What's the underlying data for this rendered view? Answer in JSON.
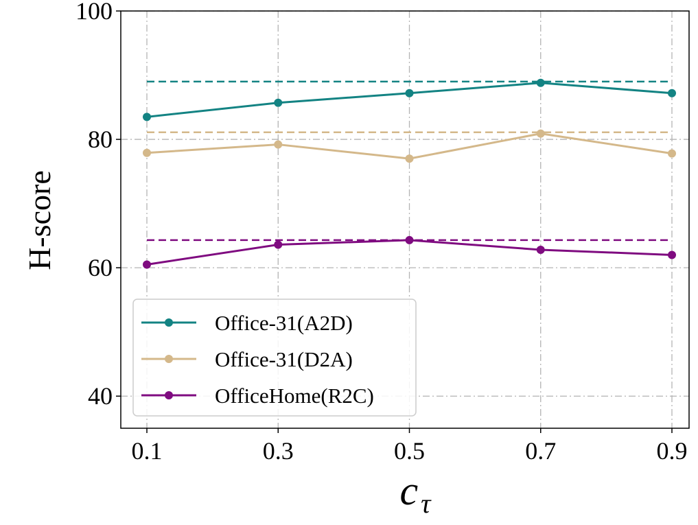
{
  "chart_data": {
    "type": "line",
    "title": "",
    "xlabel": "c_τ",
    "xlabel_base": "c",
    "xlabel_sub": "τ",
    "ylabel": "H-score",
    "x": [
      0.1,
      0.3,
      0.5,
      0.7,
      0.9
    ],
    "x_tick_labels": [
      "0.1",
      "0.3",
      "0.5",
      "0.7",
      "0.9"
    ],
    "ylim": [
      35,
      100
    ],
    "y_ticks": [
      40,
      60,
      80,
      100
    ],
    "y_tick_labels": [
      "40",
      "60",
      "80",
      "100"
    ],
    "grid": true,
    "legend_position": "lower-left",
    "series": [
      {
        "name": "Office-31(A2D)",
        "color": "#138383",
        "values": [
          83.5,
          85.7,
          87.2,
          88.8,
          87.2
        ],
        "reference": 89.0
      },
      {
        "name": "Office-31(D2A)",
        "color": "#d4b88a",
        "values": [
          77.9,
          79.2,
          77.0,
          80.9,
          77.8
        ],
        "reference": 81.1
      },
      {
        "name": "OfficeHome(R2C)",
        "color": "#7f0b80",
        "values": [
          60.5,
          63.6,
          64.3,
          62.8,
          62.0
        ],
        "reference": 64.3
      }
    ]
  }
}
